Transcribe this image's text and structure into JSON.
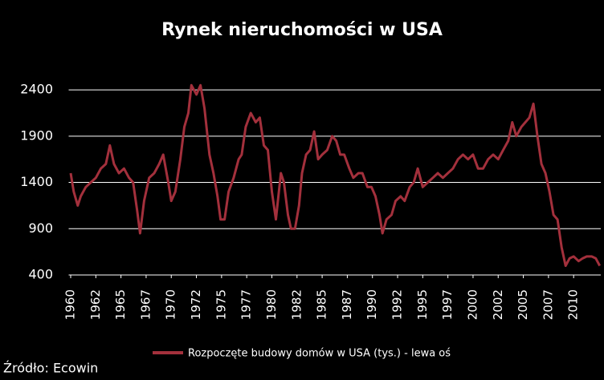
{
  "chart_data": {
    "type": "line",
    "title": "Rynek nieruchomości w USA",
    "source": "Źródło: Ecowin",
    "x": [
      1960.0,
      1960.3,
      1960.7,
      1961.0,
      1961.5,
      1962.0,
      1962.5,
      1963.0,
      1963.5,
      1963.9,
      1964.3,
      1964.8,
      1965.3,
      1965.8,
      1966.2,
      1966.6,
      1966.9,
      1967.3,
      1967.8,
      1968.3,
      1968.8,
      1969.2,
      1969.7,
      1970.0,
      1970.4,
      1970.9,
      1971.3,
      1971.7,
      1972.0,
      1972.5,
      1972.9,
      1973.3,
      1973.8,
      1974.2,
      1974.6,
      1974.9,
      1975.3,
      1975.7,
      1976.2,
      1976.7,
      1977.0,
      1977.4,
      1977.9,
      1978.4,
      1978.8,
      1979.2,
      1979.6,
      1980.0,
      1980.4,
      1980.9,
      1981.2,
      1981.6,
      1981.9,
      1982.3,
      1982.7,
      1983.0,
      1983.4,
      1983.8,
      1984.2,
      1984.6,
      1985.0,
      1985.5,
      1986.0,
      1986.4,
      1986.8,
      1987.2,
      1987.7,
      1988.1,
      1988.6,
      1989.0,
      1989.5,
      1989.9,
      1990.3,
      1990.7,
      1991.0,
      1991.4,
      1991.9,
      1992.3,
      1992.8,
      1993.2,
      1993.7,
      1994.1,
      1994.5,
      1995.0,
      1995.5,
      1996.0,
      1996.5,
      1997.0,
      1997.5,
      1998.0,
      1998.5,
      1999.0,
      1999.5,
      2000.0,
      2000.5,
      2001.0,
      2001.5,
      2002.0,
      2002.5,
      2003.0,
      2003.5,
      2003.9,
      2004.3,
      2004.8,
      2005.2,
      2005.6,
      2006.0,
      2006.4,
      2006.8,
      2007.2,
      2007.6,
      2008.0,
      2008.4,
      2008.8,
      2009.2,
      2009.6,
      2010.0,
      2010.5,
      2010.9,
      2011.3,
      2011.8,
      2012.2,
      2012.6
    ],
    "series": [
      {
        "name": "Rozpoczęte budowy domów w USA (tys.) - lewa oś",
        "color": "#a3303c",
        "values": [
          1500,
          1300,
          1150,
          1250,
          1350,
          1400,
          1450,
          1550,
          1600,
          1800,
          1600,
          1500,
          1550,
          1450,
          1400,
          1100,
          850,
          1200,
          1450,
          1500,
          1600,
          1700,
          1400,
          1200,
          1300,
          1650,
          2000,
          2150,
          2450,
          2350,
          2450,
          2200,
          1700,
          1500,
          1250,
          1000,
          1000,
          1300,
          1450,
          1650,
          1700,
          2000,
          2150,
          2050,
          2100,
          1800,
          1750,
          1300,
          1000,
          1500,
          1400,
          1050,
          900,
          900,
          1150,
          1500,
          1700,
          1750,
          1950,
          1650,
          1700,
          1750,
          1900,
          1850,
          1700,
          1700,
          1550,
          1450,
          1500,
          1500,
          1350,
          1350,
          1250,
          1050,
          850,
          1000,
          1050,
          1200,
          1250,
          1200,
          1350,
          1400,
          1550,
          1350,
          1400,
          1450,
          1500,
          1450,
          1500,
          1550,
          1650,
          1700,
          1650,
          1700,
          1550,
          1550,
          1650,
          1700,
          1650,
          1750,
          1850,
          2050,
          1900,
          2000,
          2050,
          2100,
          2250,
          1900,
          1600,
          1500,
          1300,
          1050,
          1000,
          700,
          500,
          580,
          600,
          550,
          580,
          600,
          600,
          580,
          500
        ]
      }
    ],
    "xlim": [
      1959.8,
      2012.7
    ],
    "xticks": [
      1960,
      {
        "value": 1962.5,
        "label": "1962"
      },
      1965,
      {
        "value": 1967.5,
        "label": "1967"
      },
      1970,
      {
        "value": 1972.5,
        "label": "1972"
      },
      1975,
      {
        "value": 1977.5,
        "label": "1977"
      },
      1980,
      {
        "value": 1982.5,
        "label": "1982"
      },
      1985,
      {
        "value": 1987.5,
        "label": "1987"
      },
      1990,
      {
        "value": 1992.5,
        "label": "1992"
      },
      1995,
      {
        "value": 1997.5,
        "label": "1997"
      },
      2000,
      {
        "value": 2002.5,
        "label": "2002"
      },
      2005,
      {
        "value": 2007.5,
        "label": "2007"
      },
      2010
    ],
    "ylim": [
      400,
      2600
    ],
    "yticks": [
      400,
      900,
      1400,
      1900,
      2400
    ],
    "grid": true
  }
}
